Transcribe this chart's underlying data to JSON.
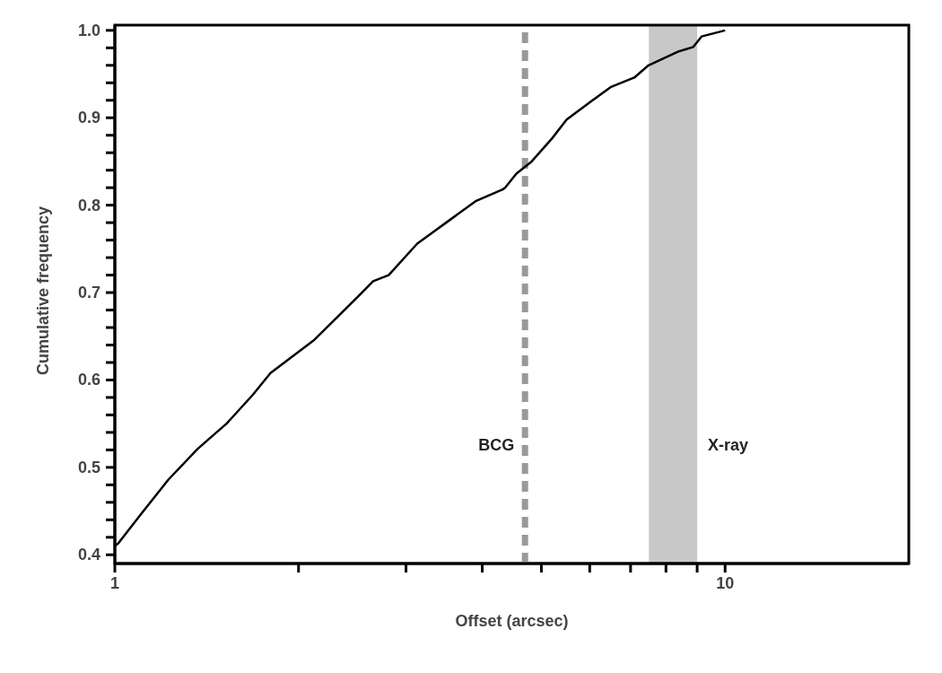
{
  "chart_data": {
    "type": "line",
    "xlabel": "Offset (arcsec)",
    "ylabel": "Cumulative frequency",
    "log": "x",
    "xlim": [
      1,
      20
    ],
    "ylim": [
      0.39,
      1.006
    ],
    "xticks": [
      1,
      {
        "value": 2,
        "label": null
      },
      {
        "value": 3,
        "label": null
      },
      {
        "value": 4,
        "label": null
      },
      {
        "value": 5,
        "label": null
      },
      {
        "value": 6,
        "label": null
      },
      {
        "value": 7,
        "label": null
      },
      {
        "value": 8,
        "label": null
      },
      {
        "value": 9,
        "label": null
      },
      10
    ],
    "yticks": [
      0.4,
      {
        "value": 0.42,
        "label": null
      },
      {
        "value": 0.44,
        "label": null
      },
      {
        "value": 0.46,
        "label": null
      },
      {
        "value": 0.48,
        "label": null
      },
      0.5,
      {
        "value": 0.52,
        "label": null
      },
      {
        "value": 0.54,
        "label": null
      },
      {
        "value": 0.56,
        "label": null
      },
      {
        "value": 0.58,
        "label": null
      },
      0.6,
      {
        "value": 0.62,
        "label": null
      },
      {
        "value": 0.64,
        "label": null
      },
      {
        "value": 0.66,
        "label": null
      },
      {
        "value": 0.68,
        "label": null
      },
      0.7,
      {
        "value": 0.72,
        "label": null
      },
      {
        "value": 0.74,
        "label": null
      },
      {
        "value": 0.76,
        "label": null
      },
      {
        "value": 0.78,
        "label": null
      },
      0.8,
      {
        "value": 0.82,
        "label": null
      },
      {
        "value": 0.84,
        "label": null
      },
      {
        "value": 0.86,
        "label": null
      },
      {
        "value": 0.88,
        "label": null
      },
      0.9,
      {
        "value": 0.92,
        "label": null
      },
      {
        "value": 0.94,
        "label": null
      },
      {
        "value": 0.96,
        "label": null
      },
      {
        "value": 0.98,
        "label": null
      },
      {
        "value": 1,
        "label": "1.0"
      }
    ],
    "grid": false,
    "legend": false,
    "marker": "none",
    "line_style": "solid",
    "series": [
      {
        "color": "#000000",
        "x": [
          1,
          1.013,
          1.108,
          1.224,
          1.366,
          1.524,
          1.683,
          1.799,
          2.123,
          2.377,
          2.5,
          2.65,
          2.81,
          3.13,
          3.49,
          3.91,
          4.32,
          4.36,
          4.55,
          4.82,
          5.2,
          5.5,
          6.01,
          6.49,
          7.1,
          7.49,
          8.4,
          8.87,
          9.15,
          10
        ],
        "values": [
          0.41,
          0.413,
          0.448,
          0.486,
          0.521,
          0.55,
          0.583,
          0.608,
          0.646,
          0.68,
          0.695,
          0.713,
          0.72,
          0.756,
          0.78,
          0.805,
          0.818,
          0.82,
          0.836,
          0.85,
          0.876,
          0.898,
          0.918,
          0.935,
          0.946,
          0.96,
          0.976,
          0.981,
          0.993,
          1.0
        ]
      }
    ],
    "ref_lines": [
      {
        "axis": "x",
        "value": 4.7,
        "label": "BCG",
        "color": "#999999",
        "line_style": "dashed"
      }
    ],
    "bands": [
      {
        "axis": "x",
        "from": 7.5,
        "to": 9.0,
        "label": "X-ray",
        "color": "#c8c8c8"
      }
    ]
  }
}
